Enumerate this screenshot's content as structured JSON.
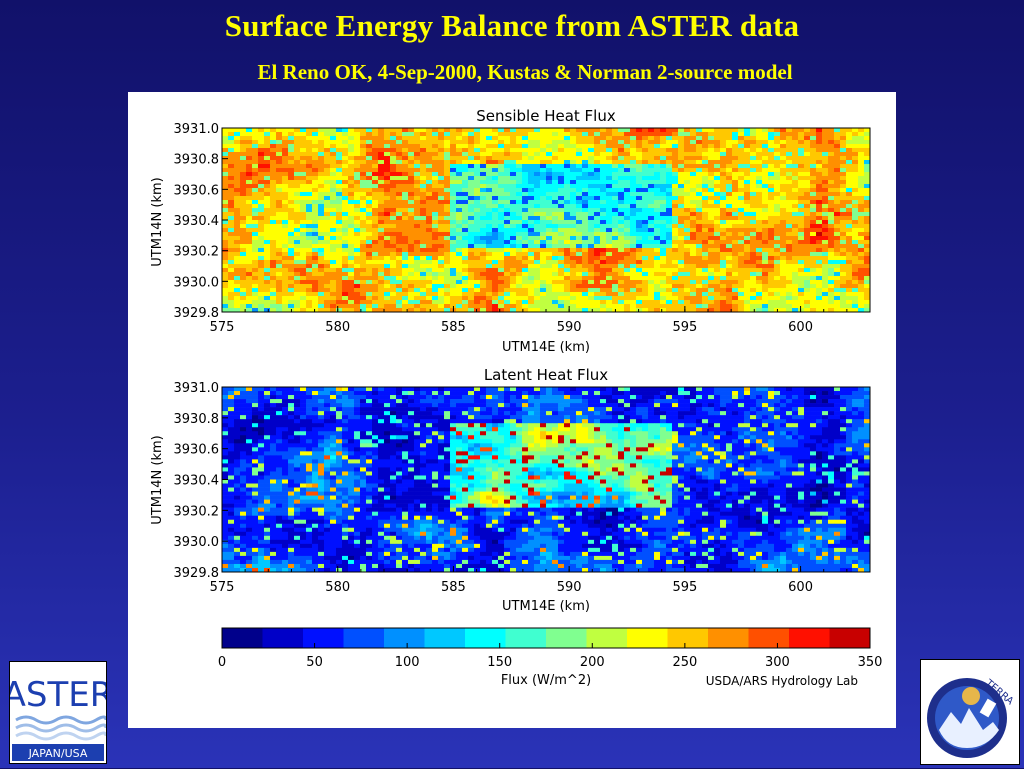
{
  "slide": {
    "title": "Surface Energy Balance from ASTER data",
    "subtitle": "El Reno OK, 4-Sep-2000, Kustas & Norman 2-source model"
  },
  "credit": "USDA/ARS Hydrology Lab",
  "logos": {
    "aster": {
      "name": "ASTER",
      "tagline": "JAPAN/USA"
    },
    "terra": {
      "name": "TERRA"
    }
  },
  "chart_data": [
    {
      "type": "heatmap",
      "title": "Sensible Heat Flux",
      "xlabel": "UTM14E (km)",
      "ylabel": "UTM14N (km)",
      "xlim": [
        575,
        603
      ],
      "ylim": [
        3929.8,
        3931.0
      ],
      "xticks": [
        "575",
        "580",
        "585",
        "590",
        "595",
        "600"
      ],
      "yticks": [
        "3931.0",
        "3930.8",
        "3930.6",
        "3930.4",
        "3930.2",
        "3930.0",
        "3929.8"
      ],
      "dominant_range": [
        250,
        330
      ]
    },
    {
      "type": "heatmap",
      "title": "Latent Heat Flux",
      "xlabel": "UTM14E (km)",
      "ylabel": "UTM14N (km)",
      "xlim": [
        575,
        603
      ],
      "ylim": [
        3929.8,
        3931.0
      ],
      "xticks": [
        "575",
        "580",
        "585",
        "590",
        "595",
        "600"
      ],
      "yticks": [
        "3931.0",
        "3930.8",
        "3930.6",
        "3930.4",
        "3930.2",
        "3930.0",
        "3929.8"
      ],
      "dominant_range": [
        20,
        70
      ]
    }
  ],
  "colorbar": {
    "label": "Flux (W/m^2)",
    "range": [
      0,
      350
    ],
    "ticks": [
      "0",
      "50",
      "100",
      "150",
      "200",
      "250",
      "300",
      "350"
    ],
    "colors": [
      "#00008b",
      "#0000c8",
      "#0010ff",
      "#0050ff",
      "#0090ff",
      "#00c8ff",
      "#00ffff",
      "#40ffd0",
      "#80ff90",
      "#c0ff40",
      "#ffff00",
      "#ffc800",
      "#ff9000",
      "#ff5000",
      "#ff1000",
      "#c80000"
    ]
  }
}
